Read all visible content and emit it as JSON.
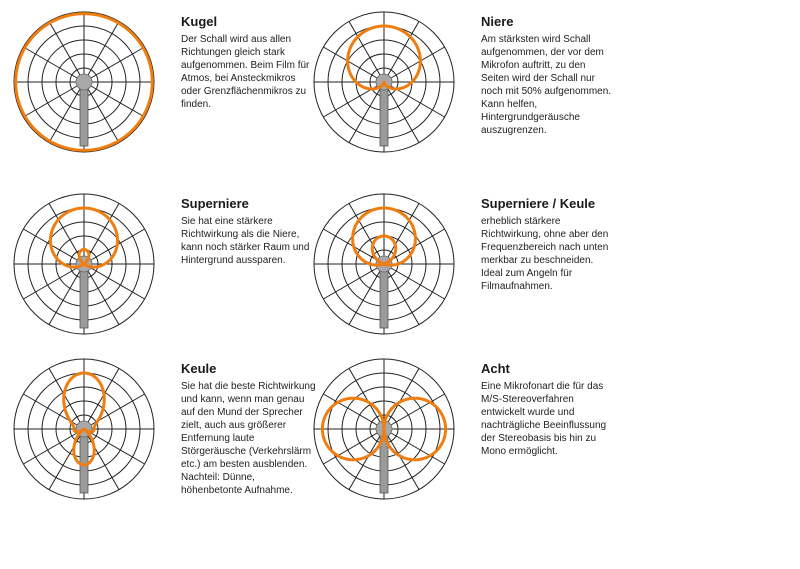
{
  "colors": {
    "pattern": "#f07d10",
    "grid": "#222222",
    "mic_body": "#9a9a9a",
    "mic_head": "#a8a8a8"
  },
  "patterns": [
    {
      "id": "kugel",
      "title": "Kugel",
      "description": "Der Schall wird aus allen Richtungen gleich stark aufgenommen. Beim Film für Atmos, bei Ansteckmikros oder Grenzflächenmikros zu finden.",
      "shape": "omnidirectional"
    },
    {
      "id": "niere",
      "title": "Niere",
      "description": "Am stärksten wird Schall aufgenommen, der vor dem Mikrofon auftritt, zu den Seiten wird der Schall nur noch mit 50% aufgenommen. Kann helfen, Hintergrundgeräusche auszugrenzen.",
      "shape": "cardioid"
    },
    {
      "id": "superniere",
      "title": "Superniere",
      "description": "Sie hat eine stärkere Richtwirkung als die Niere, kann noch stärker Raum und Hintergrund aussparen.",
      "shape": "supercardioid"
    },
    {
      "id": "superniere-keule",
      "title": "Superniere / Keule",
      "description": "erheblich stärkere Richtwirkung, ohne aber den Frequenzbereich nach unten merkbar zu beschneiden. Ideal zum Angeln für Filmaufnahmen.",
      "shape": "hypercardioid"
    },
    {
      "id": "keule",
      "title": "Keule",
      "description": "Sie hat die beste Richtwirkung und kann, wenn man genau auf den Mund der Sprecher zielt, auch aus größerer Entfernung laute Störgeräusche (Verkehrslärm etc.) am besten ausblenden. Nachteil: Dünne, höhenbetonte Aufnahme.",
      "shape": "shotgun"
    },
    {
      "id": "acht",
      "title": "Acht",
      "description": "Eine Mikrofonart die für das M/S-Stereoverfahren entwickelt wurde und nachträgliche Beeinflussung der Stereobasis bis hin zu Mono ermöglicht.",
      "shape": "figure-eight"
    }
  ]
}
